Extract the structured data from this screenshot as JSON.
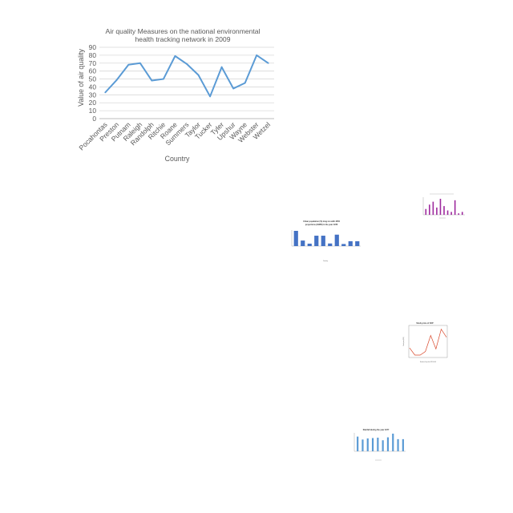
{
  "chart_data": [
    {
      "type": "line",
      "title": "Air quality Measures on the national environmental health tracking network in 2009",
      "title_lines": [
        "Air quality Measures on the national environmental",
        "health tracking network in 2009"
      ],
      "xlabel": "Country",
      "ylabel": "Value of air quality",
      "ylim": [
        0,
        90
      ],
      "yticks": [
        0,
        10,
        20,
        30,
        40,
        50,
        60,
        70,
        80,
        90
      ],
      "grid": true,
      "categories": [
        "Pocahontas",
        "Preston",
        "Putnam",
        "Raleigh",
        "Randolph",
        "Ritchie",
        "Roane",
        "Summers",
        "Taylor",
        "Tucker",
        "Tyler",
        "Upshur",
        "Wayne",
        "Webster",
        "Wetzel"
      ],
      "series": [
        {
          "values": [
            33,
            49,
            68,
            70,
            48,
            50,
            79,
            69,
            55,
            28,
            65,
            38,
            45,
            80,
            70
          ]
        }
      ],
      "color": "#5b9bd5"
    },
    {
      "type": "bar",
      "color": "#9e2a9e",
      "values": [
        4,
        7,
        9,
        5,
        11,
        6,
        3,
        2,
        10,
        1,
        2
      ]
    },
    {
      "type": "bar",
      "title": "Urban population (%) long run with 2050 projections (OWID) in the year 1978",
      "title_lines": [
        "Urban population (%) long run with 2050",
        "projections (OWID) in the year 1978"
      ],
      "xlabel": "Country",
      "color": "#4472c4",
      "values": [
        88,
        32,
        14,
        60,
        60,
        15,
        66,
        12,
        28,
        28
      ]
    },
    {
      "type": "line",
      "title": "Stock price of XXP",
      "xlabel": "Number of trips after 2015-04-09",
      "ylabel": "Stock price (USD)",
      "color": "#d9482b",
      "values": [
        60,
        20,
        20,
        40,
        130,
        55,
        165,
        120
      ]
    },
    {
      "type": "bar",
      "title": "Rainfall during the year 1977",
      "color": "#5b9bd5",
      "values": [
        40,
        32,
        35,
        36,
        37,
        30,
        38,
        48,
        33,
        33
      ]
    }
  ]
}
